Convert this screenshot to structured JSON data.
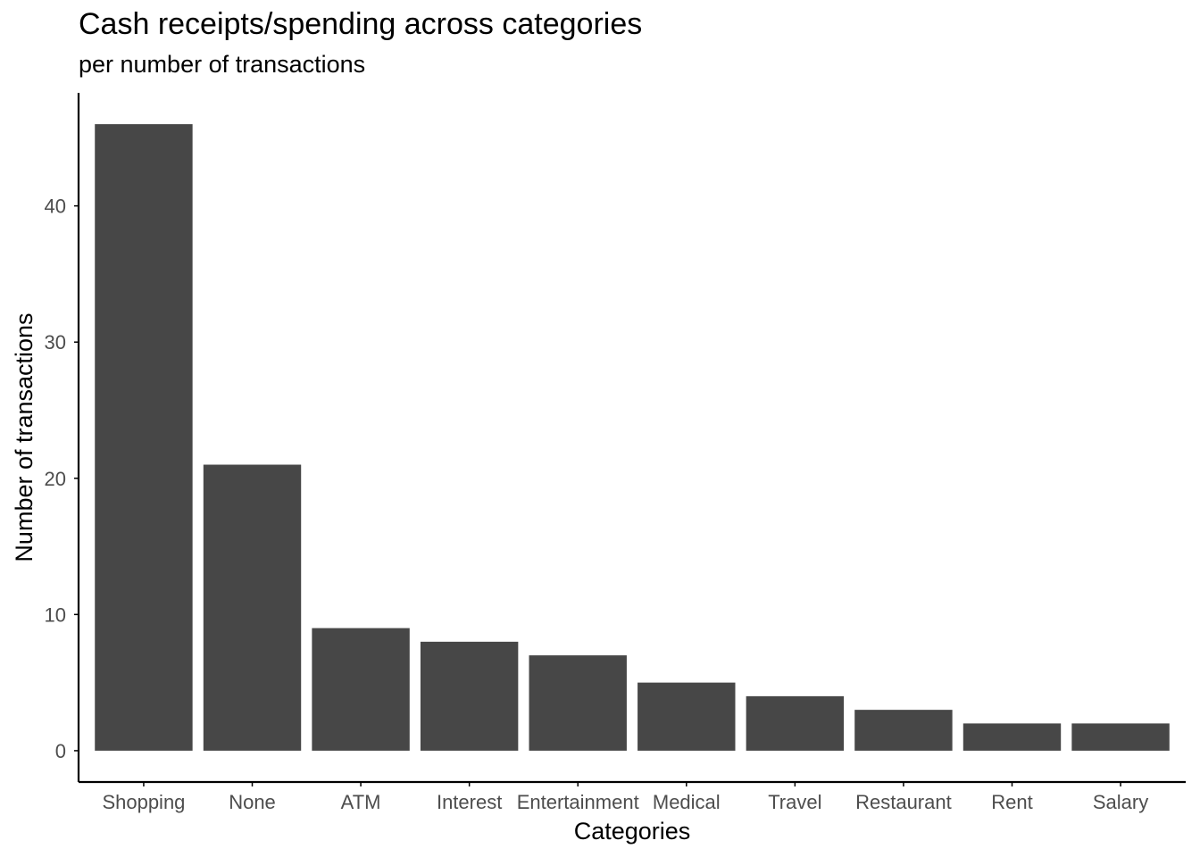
{
  "chart_data": {
    "type": "bar",
    "title": "Cash receipts/spending across categories",
    "subtitle": "per number of transactions",
    "xlabel": "Categories",
    "ylabel": "Number of transactions",
    "categories": [
      "Shopping",
      "None",
      "ATM",
      "Interest",
      "Entertainment",
      "Medical",
      "Travel",
      "Restaurant",
      "Rent",
      "Salary"
    ],
    "values": [
      46,
      21,
      9,
      8,
      7,
      5,
      4,
      3,
      2,
      2
    ],
    "yticks": [
      0,
      10,
      20,
      30,
      40
    ],
    "ylim": [
      -2.3,
      48.3
    ],
    "grid": false,
    "legend": "none",
    "colors": {
      "bar": "#474747",
      "axis_line": "#000000",
      "tick_label": "#4d4d4d",
      "text": "#000000"
    }
  }
}
